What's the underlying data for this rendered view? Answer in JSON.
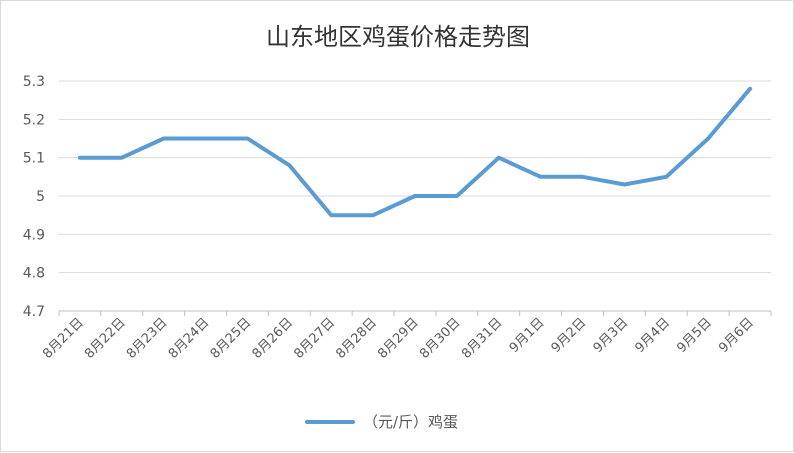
{
  "chart_data": {
    "type": "line",
    "title": "山东地区鸡蛋价格走势图",
    "categories": [
      "8月21日",
      "8月22日",
      "8月23日",
      "8月24日",
      "8月25日",
      "8月26日",
      "8月27日",
      "8月28日",
      "8月29日",
      "8月30日",
      "8月31日",
      "9月1日",
      "9月2日",
      "9月3日",
      "9月4日",
      "9月5日",
      "9月6日"
    ],
    "series": [
      {
        "name": "（元/斤）鸡蛋",
        "values": [
          5.1,
          5.1,
          5.15,
          5.15,
          5.15,
          5.08,
          4.95,
          4.95,
          5.0,
          5.0,
          5.1,
          5.05,
          5.05,
          5.03,
          5.05,
          5.15,
          5.28
        ]
      }
    ],
    "ylim": [
      4.7,
      5.3
    ],
    "yticks": [
      "4.7",
      "4.8",
      "4.9",
      "5",
      "5.1",
      "5.2",
      "5.3"
    ],
    "grid": true,
    "legend_position": "bottom",
    "colors": {
      "line": "#5b9bd5",
      "grid": "#d9d9d9",
      "axis": "#bfbfbf"
    }
  }
}
